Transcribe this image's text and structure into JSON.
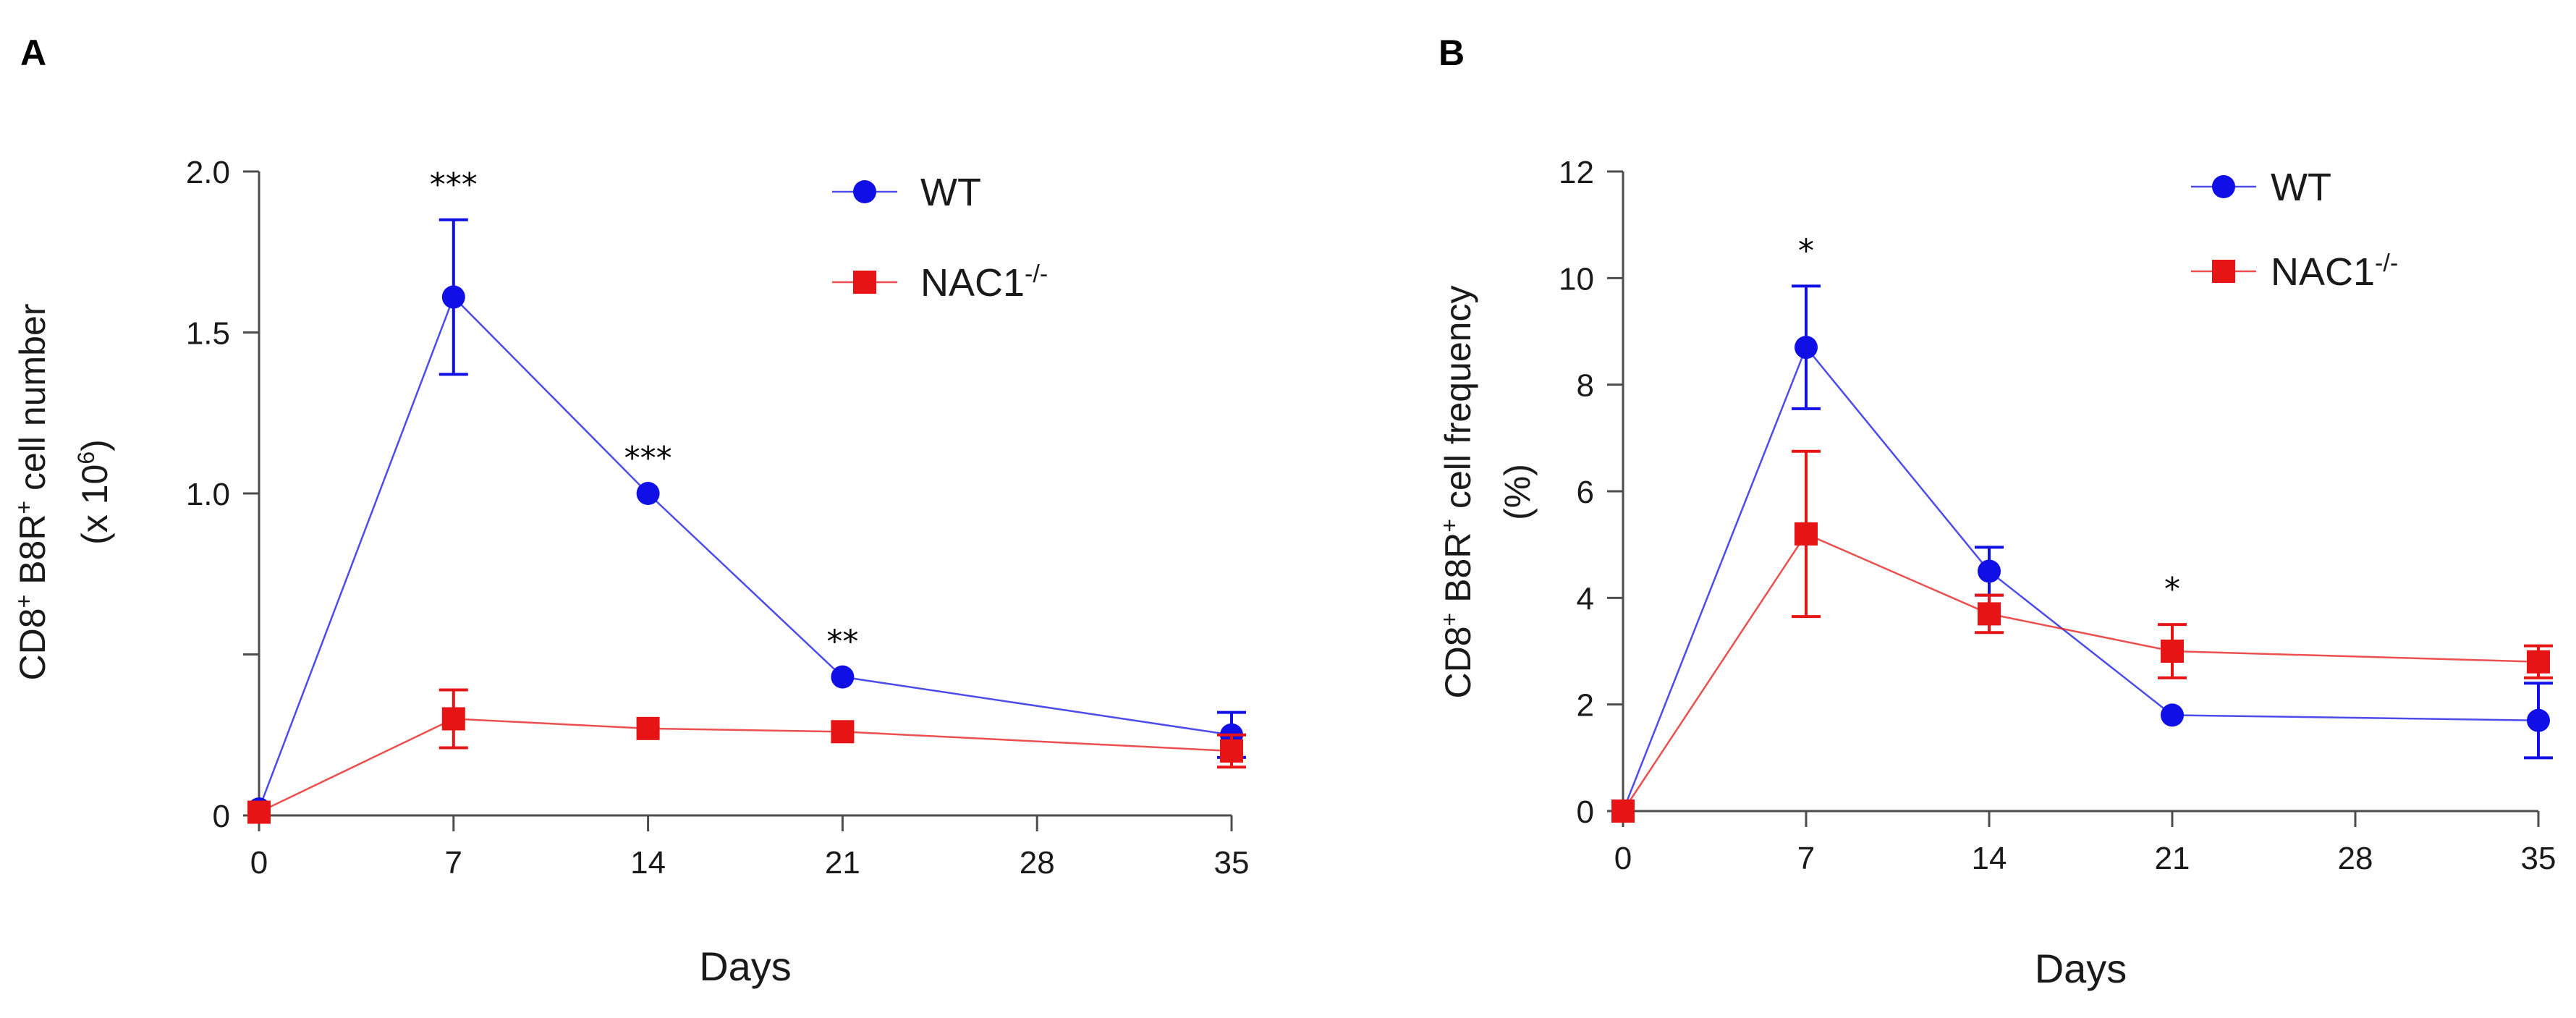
{
  "chart_data": [
    {
      "panel": "A",
      "type": "line",
      "xlabel": "Days",
      "ylabel_parts": [
        "CD8",
        "+",
        " B8R",
        "+",
        " cell number"
      ],
      "ylabel2_parts": [
        "(x 10",
        "6",
        ")"
      ],
      "x_ticks": [
        0,
        7,
        14,
        21,
        28,
        35
      ],
      "y_ticks": [
        0,
        0.5,
        1.0,
        1.5,
        2.0
      ],
      "y_tick_labels": [
        "0",
        "",
        "1.0",
        "1.5",
        "2.0"
      ],
      "xlim": [
        0,
        35
      ],
      "ylim": [
        0,
        2.0
      ],
      "legend": {
        "position": "top-right",
        "entries": [
          "WT",
          "NAC1"
        ],
        "nac_sup": "-/-"
      },
      "series": [
        {
          "name": "WT",
          "color": "#1010e6",
          "marker": "circle",
          "x": [
            0,
            7,
            14,
            21,
            35
          ],
          "y": [
            0.02,
            1.61,
            1.0,
            0.43,
            0.25
          ],
          "err": [
            0,
            0.24,
            0,
            0,
            0.07
          ]
        },
        {
          "name": "NAC1-/-",
          "color": "#e61414",
          "marker": "square",
          "x": [
            0,
            7,
            14,
            21,
            35
          ],
          "y": [
            0.01,
            0.3,
            0.27,
            0.26,
            0.2
          ],
          "err": [
            0,
            0.09,
            0,
            0,
            0.05
          ]
        }
      ],
      "annotations": [
        {
          "x": 7,
          "y": 1.85,
          "text": "***"
        },
        {
          "x": 14,
          "y": 1.0,
          "text": "***"
        },
        {
          "x": 21,
          "y": 0.43,
          "text": "**"
        }
      ]
    },
    {
      "panel": "B",
      "type": "line",
      "xlabel": "Days",
      "ylabel_parts": [
        "CD8",
        "+",
        " B8R",
        "+",
        " cell frequency"
      ],
      "ylabel2_parts": [
        "(%)",
        "",
        ""
      ],
      "x_ticks": [
        0,
        7,
        14,
        21,
        28,
        35
      ],
      "y_ticks": [
        0,
        2,
        4,
        6,
        8,
        10,
        12
      ],
      "y_tick_labels": [
        "0",
        "2",
        "4",
        "6",
        "8",
        "10",
        "12"
      ],
      "xlim": [
        0,
        35
      ],
      "ylim": [
        0,
        12
      ],
      "legend": {
        "position": "top-right",
        "entries": [
          "WT",
          "NAC1"
        ],
        "nac_sup": "-/-"
      },
      "series": [
        {
          "name": "WT",
          "color": "#1010e6",
          "marker": "circle",
          "x": [
            0,
            7,
            14,
            21,
            35
          ],
          "y": [
            0,
            8.7,
            4.5,
            1.8,
            1.7
          ],
          "err": [
            0,
            1.15,
            0.45,
            0,
            0.7
          ]
        },
        {
          "name": "NAC1-/-",
          "color": "#e61414",
          "marker": "square",
          "x": [
            0,
            7,
            14,
            21,
            35
          ],
          "y": [
            0,
            5.2,
            3.7,
            3.0,
            2.8
          ],
          "err": [
            0,
            1.55,
            0.35,
            0.5,
            0.3
          ]
        }
      ],
      "annotations": [
        {
          "x": 7,
          "y": 9.85,
          "text": "*"
        },
        {
          "x": 21,
          "y": 3.5,
          "text": "*"
        }
      ]
    }
  ]
}
